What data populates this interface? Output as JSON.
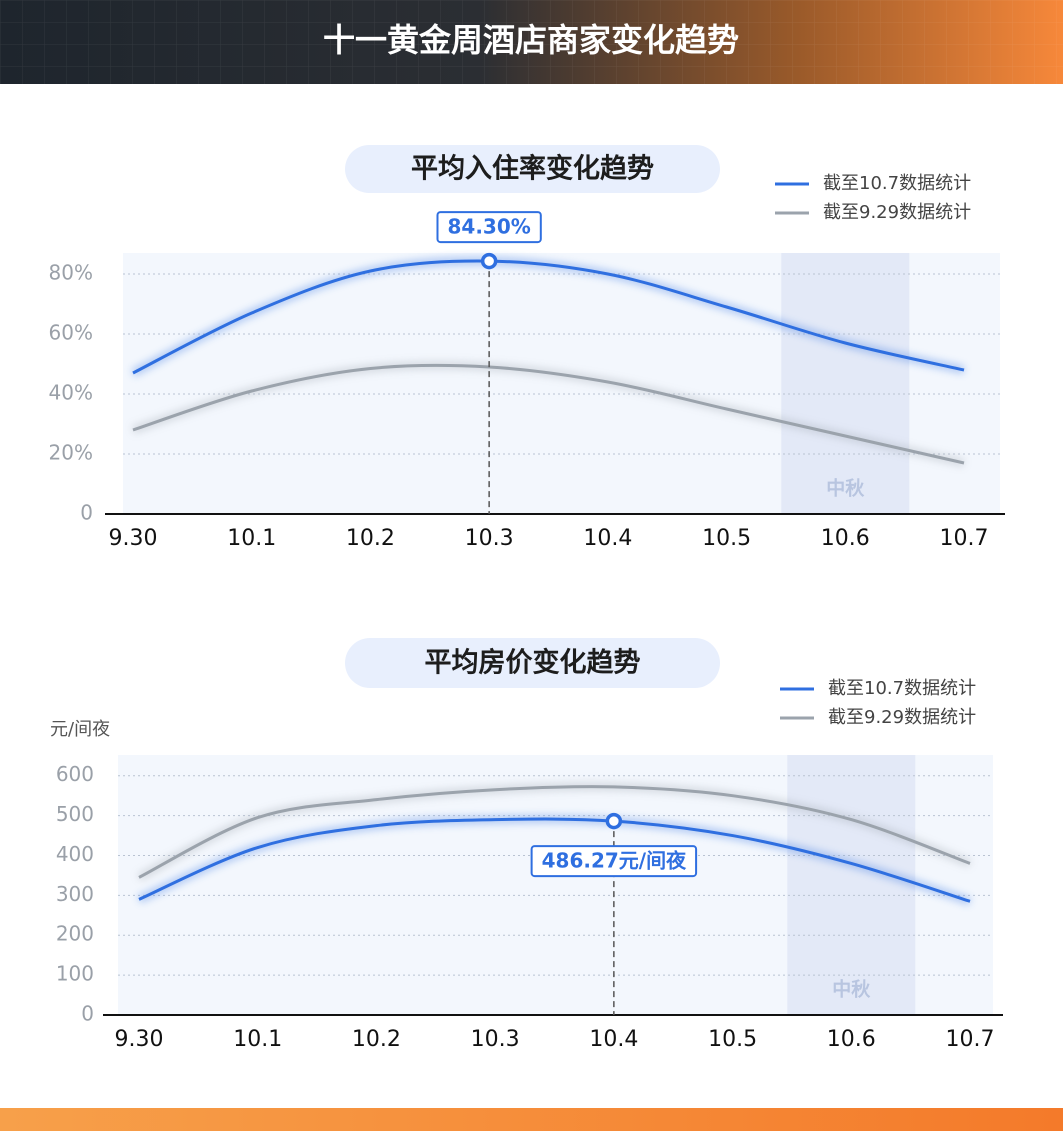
{
  "title": "十一黄金周酒店商家变化趋势",
  "chart_data": [
    {
      "type": "line",
      "title": "平均入住率变化趋势",
      "categories": [
        "9.30",
        "10.1",
        "10.2",
        "10.3",
        "10.4",
        "10.5",
        "10.6",
        "10.7"
      ],
      "series": [
        {
          "name": "截至10.7数据统计",
          "color": "#2f6fe0",
          "values": [
            47,
            67,
            81,
            84.3,
            80,
            69,
            57,
            48
          ],
          "value_labels": [
            null,
            null,
            null,
            "84.30%",
            null,
            null,
            null,
            null
          ]
        },
        {
          "name": "截至9.29数据统计",
          "color": "#9ba3ac",
          "values": [
            28,
            41,
            48.5,
            49,
            44,
            35,
            26,
            17
          ]
        }
      ],
      "ylim": [
        0,
        87
      ],
      "yticks": [
        0,
        {
          "value": 20,
          "label": "20%"
        },
        {
          "value": 40,
          "label": "40%"
        },
        {
          "value": 60,
          "label": "60%"
        },
        {
          "value": 80,
          "label": "80%"
        }
      ],
      "grid": true,
      "annotations": [
        {
          "x": "10.6",
          "text": "中秋"
        }
      ]
    },
    {
      "type": "line",
      "title": "平均房价变化趋势",
      "y_label": "元/间夜",
      "categories": [
        "9.30",
        "10.1",
        "10.2",
        "10.3",
        "10.4",
        "10.5",
        "10.6",
        "10.7"
      ],
      "series": [
        {
          "name": "截至10.7数据统计",
          "color": "#2f6fe0",
          "values": [
            290,
            420,
            475,
            490,
            486.27,
            450,
            380,
            285
          ],
          "value_labels": [
            null,
            null,
            null,
            null,
            "486.27元/间夜",
            null,
            null,
            null
          ]
        },
        {
          "name": "截至9.29数据统计",
          "color": "#9ba3ac",
          "values": [
            345,
            495,
            540,
            565,
            572,
            550,
            490,
            380
          ]
        }
      ],
      "ylim": [
        0,
        652
      ],
      "yticks": [
        0,
        100,
        200,
        300,
        400,
        500,
        600
      ],
      "grid": true,
      "annotations": [
        {
          "x": "10.6",
          "text": "中秋"
        }
      ]
    }
  ]
}
